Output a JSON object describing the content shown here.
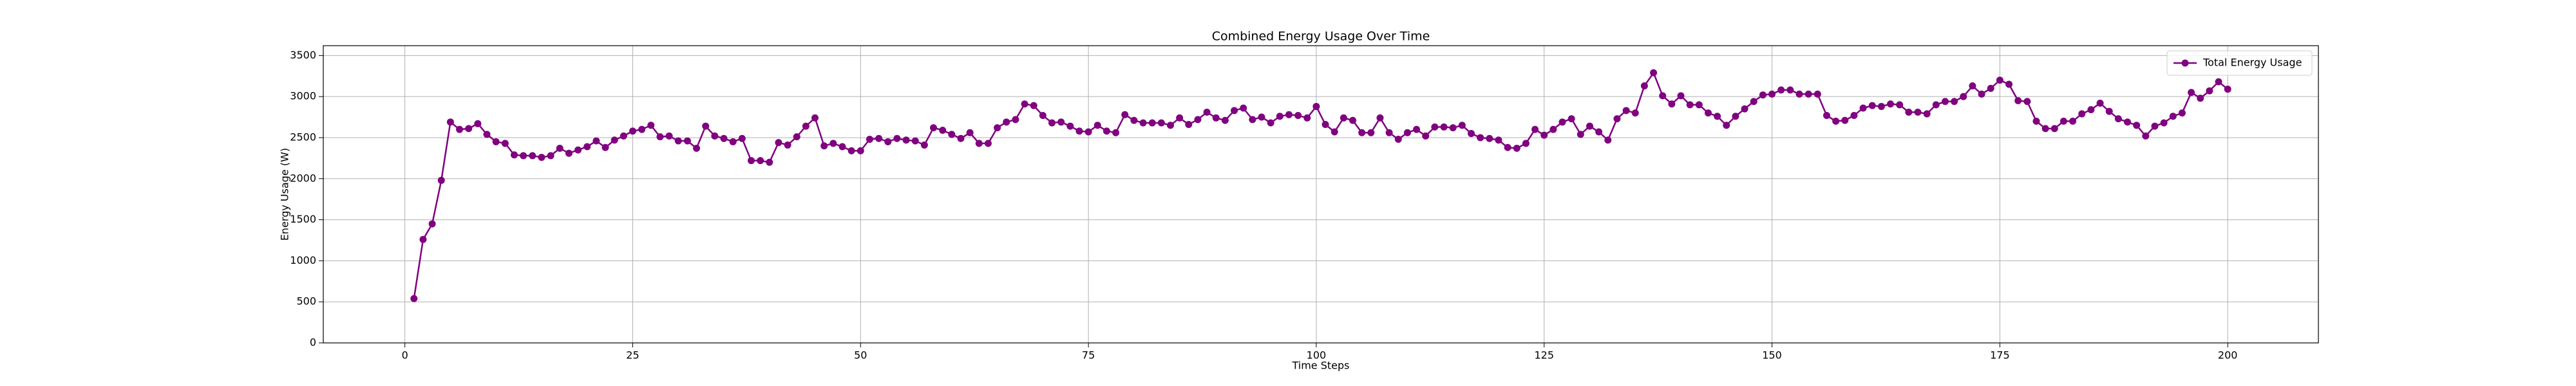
{
  "chart_data": {
    "type": "line",
    "title": "Combined Energy Usage Over Time",
    "x_label": "Time Steps",
    "y_label": "Energy Usage (W)",
    "x": [
      1,
      2,
      3,
      4,
      5,
      6,
      7,
      8,
      9,
      10,
      11,
      12,
      13,
      14,
      15,
      16,
      17,
      18,
      19,
      20,
      21,
      22,
      23,
      24,
      25,
      26,
      27,
      28,
      29,
      30,
      31,
      32,
      33,
      34,
      35,
      36,
      37,
      38,
      39,
      40,
      41,
      42,
      43,
      44,
      45,
      46,
      47,
      48,
      49,
      50,
      51,
      52,
      53,
      54,
      55,
      56,
      57,
      58,
      59,
      60,
      61,
      62,
      63,
      64,
      65,
      66,
      67,
      68,
      69,
      70,
      71,
      72,
      73,
      74,
      75,
      76,
      77,
      78,
      79,
      80,
      81,
      82,
      83,
      84,
      85,
      86,
      87,
      88,
      89,
      90,
      91,
      92,
      93,
      94,
      95,
      96,
      97,
      98,
      99,
      100,
      101,
      102,
      103,
      104,
      105,
      106,
      107,
      108,
      109,
      110,
      111,
      112,
      113,
      114,
      115,
      116,
      117,
      118,
      119,
      120,
      121,
      122,
      123,
      124,
      125,
      126,
      127,
      128,
      129,
      130,
      131,
      132,
      133,
      134,
      135,
      136,
      137,
      138,
      139,
      140,
      141,
      142,
      143,
      144,
      145,
      146,
      147,
      148,
      149,
      150,
      151,
      152,
      153,
      154,
      155,
      156,
      157,
      158,
      159,
      160,
      161,
      162,
      163,
      164,
      165,
      166,
      167,
      168,
      169,
      170,
      171,
      172,
      173,
      174,
      175,
      176,
      177,
      178,
      179,
      180,
      181,
      182,
      183,
      184,
      185,
      186,
      187,
      188,
      189,
      190,
      191,
      192,
      193,
      194,
      195,
      196,
      197,
      198,
      199,
      200
    ],
    "series": [
      {
        "name": "Total Energy Usage",
        "color": "#800080",
        "values": [
          540,
          1260,
          1450,
          1980,
          2690,
          2600,
          2610,
          2670,
          2540,
          2450,
          2430,
          2290,
          2280,
          2280,
          2260,
          2280,
          2370,
          2310,
          2350,
          2390,
          2460,
          2380,
          2470,
          2520,
          2580,
          2600,
          2650,
          2510,
          2520,
          2460,
          2460,
          2370,
          2640,
          2520,
          2490,
          2450,
          2490,
          2220,
          2220,
          2200,
          2440,
          2410,
          2510,
          2640,
          2740,
          2400,
          2430,
          2390,
          2340,
          2340,
          2480,
          2490,
          2450,
          2490,
          2470,
          2460,
          2410,
          2620,
          2590,
          2540,
          2490,
          2560,
          2430,
          2430,
          2620,
          2690,
          2720,
          2910,
          2890,
          2770,
          2680,
          2690,
          2640,
          2580,
          2570,
          2650,
          2580,
          2560,
          2780,
          2710,
          2680,
          2680,
          2680,
          2650,
          2740,
          2660,
          2720,
          2810,
          2740,
          2710,
          2830,
          2860,
          2720,
          2750,
          2680,
          2760,
          2780,
          2770,
          2740,
          2880,
          2660,
          2570,
          2740,
          2710,
          2560,
          2560,
          2740,
          2560,
          2480,
          2560,
          2600,
          2520,
          2630,
          2630,
          2620,
          2650,
          2550,
          2500,
          2490,
          2470,
          2380,
          2370,
          2430,
          2600,
          2530,
          2600,
          2690,
          2730,
          2540,
          2640,
          2570,
          2470,
          2730,
          2830,
          2800,
          3130,
          3290,
          3010,
          2910,
          3010,
          2900,
          2900,
          2800,
          2760,
          2650,
          2760,
          2850,
          2940,
          3020,
          3030,
          3080,
          3080,
          3030,
          3030,
          3030,
          2770,
          2700,
          2710,
          2770,
          2860,
          2890,
          2880,
          2910,
          2900,
          2810,
          2810,
          2790,
          2900,
          2940,
          2940,
          3000,
          3130,
          3030,
          3100,
          3200,
          3150,
          2950,
          2940,
          2700,
          2610,
          2610,
          2700,
          2700,
          2790,
          2840,
          2920,
          2820,
          2730,
          2690,
          2650,
          2520,
          2640,
          2680,
          2760,
          2800,
          3050,
          2980,
          3070,
          3180,
          3090
        ]
      }
    ],
    "xlim": [
      -8.95,
      209.95
    ],
    "ylim": [
      0,
      3620
    ],
    "xticks": [
      0,
      25,
      50,
      75,
      100,
      125,
      150,
      175,
      200
    ],
    "yticks": [
      0,
      500,
      1000,
      1500,
      2000,
      2500,
      3000,
      3500
    ],
    "grid": true,
    "legend": "upper right"
  }
}
